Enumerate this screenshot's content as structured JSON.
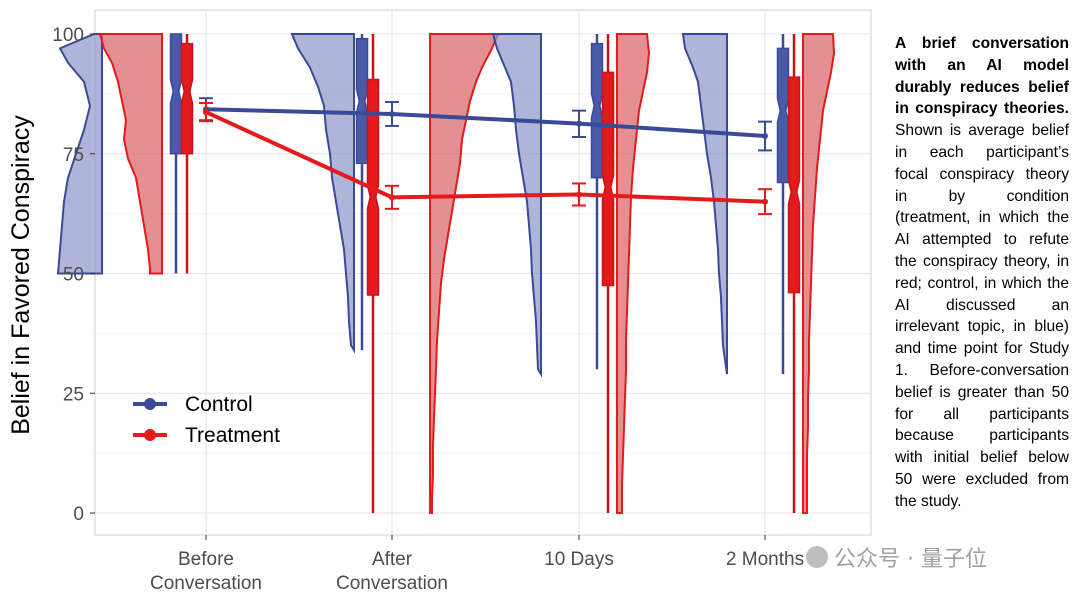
{
  "chart_data": {
    "type": "violin-box-line",
    "ylabel": "Belief in Favored Conspiracy",
    "xlabel": "",
    "ylim": [
      0,
      100
    ],
    "yticks": [
      0,
      25,
      50,
      75,
      100
    ],
    "categories": [
      {
        "line1": "Before",
        "line2": "Conversation"
      },
      {
        "line1": "After",
        "line2": "Conversation"
      },
      {
        "line1": "10 Days",
        "line2": ""
      },
      {
        "line1": "2 Months",
        "line2": ""
      }
    ],
    "series": [
      {
        "name": "Control",
        "color": "#3a4a96",
        "fill": "#8b95c8",
        "mean": [
          84.3,
          83.3,
          81.3,
          78.7
        ],
        "ci": [
          [
            82,
            86.6
          ],
          [
            80.8,
            85.8
          ],
          [
            78.5,
            84
          ],
          [
            75.7,
            81.7
          ]
        ],
        "box": [
          {
            "lo": 50,
            "q1": 75,
            "med": 88,
            "q3": 100,
            "hi": 100
          },
          {
            "lo": 34,
            "q1": 73,
            "med": 86,
            "q3": 99,
            "hi": 100
          },
          {
            "lo": 30,
            "q1": 70,
            "med": 85,
            "q3": 98,
            "hi": 100
          },
          {
            "lo": 29,
            "q1": 69,
            "med": 84,
            "q3": 97,
            "hi": 100
          }
        ]
      },
      {
        "name": "Treatment",
        "color": "#e41a1c",
        "fill": "#d95f63",
        "mean": [
          83.7,
          65.9,
          66.5,
          65
        ],
        "ci": [
          [
            81.8,
            85.6
          ],
          [
            63.5,
            68.3
          ],
          [
            64.2,
            68.8
          ],
          [
            62.4,
            67.6
          ]
        ],
        "box": [
          {
            "lo": 50,
            "q1": 75,
            "med": 88,
            "q3": 98,
            "hi": 100
          },
          {
            "lo": 0,
            "q1": 45.5,
            "med": 66,
            "q3": 90.5,
            "hi": 100
          },
          {
            "lo": 0,
            "q1": 47.5,
            "med": 68,
            "q3": 92,
            "hi": 100
          },
          {
            "lo": 0,
            "q1": 46,
            "med": 67,
            "q3": 91,
            "hi": 100
          }
        ]
      }
    ],
    "legend_position": "bottom-left"
  },
  "caption": {
    "bold": "A brief conversation with an AI model durably reduces belief in conspiracy theories.",
    "text": " Shown is average belief in each participant’s focal conspiracy theory in by condition (treatment, in which the AI attempted to refute the conspiracy theory, in red; control, in which the AI discussed an irrelevant topic, in blue) and time point for Study 1. Before-conversation belief is greater than 50 for all participants because participants with initial belief below 50 were excluded from the study."
  },
  "watermark": {
    "text": "公众号 · 量子位"
  }
}
